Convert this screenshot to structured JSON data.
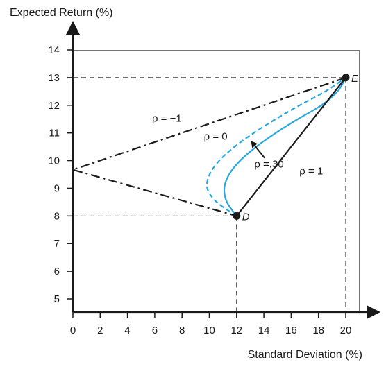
{
  "chart_data": {
    "type": "line",
    "xlabel": "Standard Deviation (%)",
    "ylabel": "Expected Return (%)",
    "xlim": [
      0,
      20.5
    ],
    "ylim": [
      4.5,
      14.5
    ],
    "x_ticks": [
      0,
      2,
      4,
      6,
      8,
      10,
      12,
      14,
      16,
      18,
      20
    ],
    "y_ticks": [
      5,
      6,
      7,
      8,
      9,
      10,
      11,
      12,
      13,
      14
    ],
    "grid": false,
    "points": [
      {
        "label": "D",
        "x": 12,
        "y": 8
      },
      {
        "label": "E",
        "x": 20,
        "y": 13
      }
    ],
    "series": [
      {
        "name": "ρ = −1",
        "style": "dash-dot",
        "color": "#1a1a1a",
        "x": [
          20,
          0,
          12
        ],
        "y": [
          13,
          9.67,
          8
        ]
      },
      {
        "name": "ρ = 0",
        "style": "dashed",
        "color": "#29a8e0",
        "x": [
          12,
          10.54,
          9.85,
          10.02,
          10.73,
          11.85,
          13.26,
          14.87,
          16.62,
          18.5,
          20
        ],
        "y": [
          8,
          8.5,
          9,
          9.5,
          10,
          10.5,
          11,
          11.5,
          12,
          12.5,
          13
        ]
      },
      {
        "name": "ρ = .30",
        "style": "solid",
        "color": "#29a8e0",
        "x": [
          12,
          11.29,
          11.1,
          11.45,
          12.26,
          13.44,
          14.87,
          16.49,
          18.22,
          19.4,
          20
        ],
        "y": [
          8,
          8.5,
          9,
          9.5,
          10,
          10.5,
          11,
          11.5,
          12,
          12.5,
          13
        ]
      },
      {
        "name": "ρ = 1",
        "style": "solid",
        "color": "#1a1a1a",
        "x": [
          12,
          20
        ],
        "y": [
          8,
          13
        ]
      }
    ],
    "annotations": [
      {
        "text": "ρ = −1",
        "x": 5.8,
        "y": 11.4
      },
      {
        "text": "ρ = 0",
        "x": 9.6,
        "y": 10.75
      },
      {
        "text": "ρ =.30",
        "x": 13.3,
        "y": 9.75
      },
      {
        "text": "ρ = 1",
        "x": 16.6,
        "y": 9.5
      }
    ],
    "guides": {
      "D": {
        "x": 12,
        "y": 8
      },
      "E": {
        "x": 20,
        "y": 13
      }
    },
    "arrow_annotation": {
      "target_series": "ρ = .30",
      "from": [
        14.05,
        10.1
      ],
      "to": [
        13.15,
        10.65
      ]
    }
  }
}
